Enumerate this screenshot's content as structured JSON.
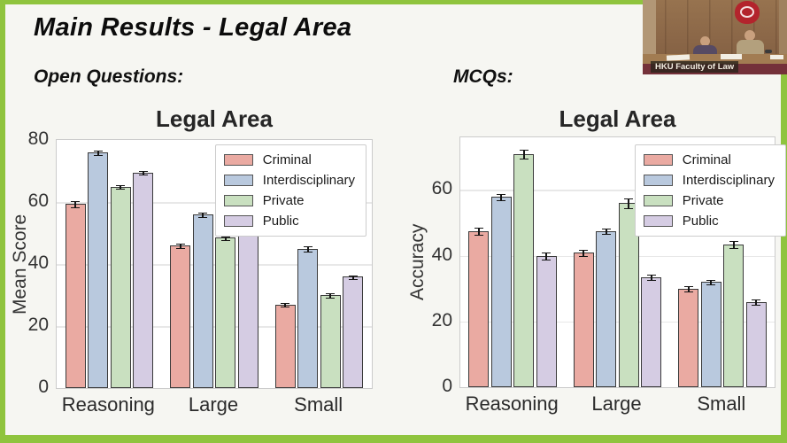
{
  "slide": {
    "title": "Main Results - Legal Area",
    "open_questions_label": "Open Questions:",
    "mcqs_label": "MCQs:",
    "border_color": "#8fc43e",
    "background_color": "#f6f6f2"
  },
  "webcam": {
    "caption": "HKU Faculty of Law"
  },
  "chart_data": [
    {
      "type": "bar",
      "title": "Legal Area",
      "xlabel": "",
      "ylabel": "Mean Score",
      "categories": [
        "Reasoning",
        "Large",
        "Small"
      ],
      "series": [
        {
          "name": "Criminal",
          "color": "#eaaaa2",
          "values": [
            59.5,
            46,
            27
          ],
          "errors": [
            0.8,
            0.5,
            0.5
          ]
        },
        {
          "name": "Interdisciplinary",
          "color": "#b9c9de",
          "values": [
            76,
            56,
            45
          ],
          "errors": [
            0.5,
            0.5,
            0.7
          ]
        },
        {
          "name": "Private",
          "color": "#c9e0c0",
          "values": [
            65,
            48.5,
            30
          ],
          "errors": [
            0.4,
            0.4,
            0.5
          ]
        },
        {
          "name": "Public",
          "color": "#d5cce3",
          "values": [
            69.5,
            53,
            36
          ],
          "errors": [
            0.4,
            0.4,
            0.4
          ]
        }
      ],
      "ylim": [
        0,
        80
      ],
      "yticks": [
        0,
        20,
        40,
        60,
        80
      ],
      "grid": true,
      "legend_position": "upper right"
    },
    {
      "type": "bar",
      "title": "Legal Area",
      "xlabel": "",
      "ylabel": "Accuracy",
      "categories": [
        "Reasoning",
        "Large",
        "Small"
      ],
      "series": [
        {
          "name": "Criminal",
          "color": "#eaaaa2",
          "values": [
            47.5,
            41,
            30
          ],
          "errors": [
            1.0,
            0.8,
            0.6
          ]
        },
        {
          "name": "Interdisciplinary",
          "color": "#b9c9de",
          "values": [
            58,
            47.5,
            32
          ],
          "errors": [
            0.8,
            0.7,
            0.6
          ]
        },
        {
          "name": "Private",
          "color": "#c9e0c0",
          "values": [
            71,
            56,
            43.5
          ],
          "errors": [
            1.3,
            1.3,
            1.0
          ]
        },
        {
          "name": "Public",
          "color": "#d5cce3",
          "values": [
            40,
            33.5,
            26
          ],
          "errors": [
            1.0,
            0.7,
            0.7
          ]
        }
      ],
      "ylim": [
        0,
        76
      ],
      "yticks": [
        0,
        20,
        40,
        60
      ],
      "grid": true,
      "legend_position": "upper right"
    }
  ]
}
